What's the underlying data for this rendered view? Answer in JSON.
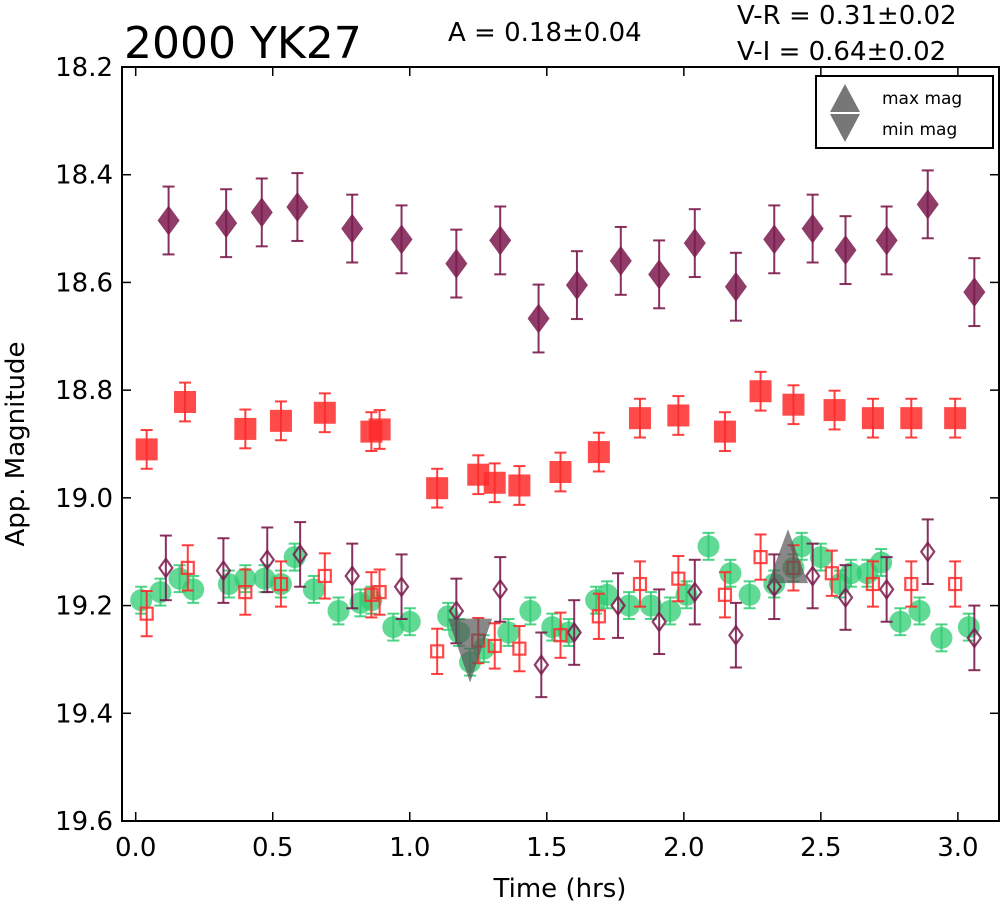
{
  "chart_data": {
    "type": "scatter",
    "title": "2000 YK27",
    "amplitude_label": "A  = 0.18±0.04",
    "color_vr": "V-R = 0.31±0.02",
    "color_vi": "V-I  = 0.64±0.02",
    "xlabel": "Time (hrs)",
    "ylabel": "App. Magnitude",
    "xlim": [
      -0.05,
      3.15
    ],
    "ylim": [
      19.6,
      18.2
    ],
    "y_inverted": true,
    "x_ticks": [
      0.0,
      0.5,
      1.0,
      1.5,
      2.0,
      2.5,
      3.0
    ],
    "x_tick_labels": [
      "0.0",
      "0.5",
      "1.0",
      "1.5",
      "2.0",
      "2.5",
      "3.0"
    ],
    "y_ticks": [
      18.2,
      18.4,
      18.6,
      18.8,
      19.0,
      19.2,
      19.4,
      19.6
    ],
    "y_tick_labels": [
      "18.2",
      "18.4",
      "18.6",
      "18.8",
      "19.0",
      "19.2",
      "19.4",
      "19.6"
    ],
    "legend": {
      "placement": "top-right",
      "entries": [
        {
          "label": "max mag",
          "marker": "triangle-up",
          "color": "#555555"
        },
        {
          "label": "min mag",
          "marker": "triangle-down",
          "color": "#555555"
        }
      ]
    },
    "series": [
      {
        "marker": "diamond-filled",
        "color": "#7b1a4d",
        "err": 0.063,
        "points": [
          [
            0.12,
            18.485
          ],
          [
            0.33,
            18.49
          ],
          [
            0.46,
            18.47
          ],
          [
            0.59,
            18.46
          ],
          [
            0.79,
            18.5
          ],
          [
            0.97,
            18.52
          ],
          [
            1.17,
            18.565
          ],
          [
            1.33,
            18.522
          ],
          [
            1.47,
            18.667
          ],
          [
            1.61,
            18.605
          ],
          [
            1.77,
            18.56
          ],
          [
            1.91,
            18.585
          ],
          [
            2.04,
            18.527
          ],
          [
            2.19,
            18.608
          ],
          [
            2.33,
            18.52
          ],
          [
            2.47,
            18.5
          ],
          [
            2.59,
            18.54
          ],
          [
            2.74,
            18.522
          ],
          [
            2.89,
            18.455
          ],
          [
            3.06,
            18.618
          ]
        ]
      },
      {
        "marker": "square-filled",
        "color": "#ff2a2a",
        "err": 0.036,
        "points": [
          [
            0.04,
            18.91
          ],
          [
            0.18,
            18.822
          ],
          [
            0.4,
            18.872
          ],
          [
            0.53,
            18.857
          ],
          [
            0.69,
            18.842
          ],
          [
            0.86,
            18.877
          ],
          [
            0.89,
            18.873
          ],
          [
            1.1,
            18.982
          ],
          [
            1.25,
            18.957
          ],
          [
            1.31,
            18.972
          ],
          [
            1.4,
            18.977
          ],
          [
            1.55,
            18.952
          ],
          [
            1.69,
            18.915
          ],
          [
            1.84,
            18.852
          ],
          [
            1.98,
            18.847
          ],
          [
            2.15,
            18.877
          ],
          [
            2.28,
            18.802
          ],
          [
            2.4,
            18.827
          ],
          [
            2.55,
            18.837
          ],
          [
            2.69,
            18.852
          ],
          [
            2.83,
            18.852
          ],
          [
            2.99,
            18.852
          ]
        ]
      },
      {
        "marker": "circle-filled",
        "color": "#2ecc71",
        "err": 0.025,
        "points": [
          [
            0.02,
            19.19
          ],
          [
            0.09,
            19.175
          ],
          [
            0.16,
            19.15
          ],
          [
            0.21,
            19.17
          ],
          [
            0.34,
            19.16
          ],
          [
            0.4,
            19.15
          ],
          [
            0.47,
            19.15
          ],
          [
            0.53,
            19.16
          ],
          [
            0.58,
            19.11
          ],
          [
            0.65,
            19.17
          ],
          [
            0.74,
            19.21
          ],
          [
            0.82,
            19.195
          ],
          [
            0.86,
            19.19
          ],
          [
            0.94,
            19.24
          ],
          [
            1.0,
            19.23
          ],
          [
            1.14,
            19.22
          ],
          [
            1.18,
            19.25
          ],
          [
            1.22,
            19.305
          ],
          [
            1.27,
            19.28
          ],
          [
            1.36,
            19.25
          ],
          [
            1.44,
            19.21
          ],
          [
            1.52,
            19.24
          ],
          [
            1.58,
            19.25
          ],
          [
            1.68,
            19.19
          ],
          [
            1.72,
            19.18
          ],
          [
            1.8,
            19.2
          ],
          [
            1.88,
            19.2
          ],
          [
            1.95,
            19.21
          ],
          [
            2.01,
            19.18
          ],
          [
            2.09,
            19.09
          ],
          [
            2.17,
            19.14
          ],
          [
            2.24,
            19.18
          ],
          [
            2.33,
            19.16
          ],
          [
            2.4,
            19.13
          ],
          [
            2.43,
            19.09
          ],
          [
            2.5,
            19.11
          ],
          [
            2.57,
            19.16
          ],
          [
            2.61,
            19.14
          ],
          [
            2.67,
            19.14
          ],
          [
            2.72,
            19.12
          ],
          [
            2.79,
            19.23
          ],
          [
            2.86,
            19.21
          ],
          [
            2.94,
            19.26
          ],
          [
            3.04,
            19.24
          ]
        ]
      },
      {
        "marker": "diamond-open",
        "color": "#7b1a4d",
        "err": 0.06,
        "points": [
          [
            0.11,
            19.13
          ],
          [
            0.32,
            19.135
          ],
          [
            0.48,
            19.115
          ],
          [
            0.6,
            19.105
          ],
          [
            0.79,
            19.145
          ],
          [
            0.97,
            19.165
          ],
          [
            1.17,
            19.21
          ],
          [
            1.33,
            19.17
          ],
          [
            1.48,
            19.31
          ],
          [
            1.6,
            19.25
          ],
          [
            1.76,
            19.2
          ],
          [
            1.91,
            19.23
          ],
          [
            2.04,
            19.175
          ],
          [
            2.19,
            19.255
          ],
          [
            2.33,
            19.165
          ],
          [
            2.47,
            19.145
          ],
          [
            2.59,
            19.185
          ],
          [
            2.74,
            19.17
          ],
          [
            2.89,
            19.1
          ],
          [
            3.06,
            19.26
          ]
        ]
      },
      {
        "marker": "square-open",
        "color": "#ff2a2a",
        "err": 0.042,
        "points": [
          [
            0.04,
            19.215
          ],
          [
            0.19,
            19.13
          ],
          [
            0.4,
            19.175
          ],
          [
            0.53,
            19.16
          ],
          [
            0.69,
            19.145
          ],
          [
            0.86,
            19.18
          ],
          [
            0.89,
            19.175
          ],
          [
            1.1,
            19.285
          ],
          [
            1.25,
            19.265
          ],
          [
            1.31,
            19.275
          ],
          [
            1.4,
            19.28
          ],
          [
            1.55,
            19.255
          ],
          [
            1.69,
            19.22
          ],
          [
            1.84,
            19.16
          ],
          [
            1.98,
            19.15
          ],
          [
            2.15,
            19.18
          ],
          [
            2.28,
            19.11
          ],
          [
            2.4,
            19.13
          ],
          [
            2.54,
            19.14
          ],
          [
            2.69,
            19.16
          ],
          [
            2.83,
            19.16
          ],
          [
            2.99,
            19.16
          ]
        ]
      }
    ],
    "extrema": [
      {
        "label": "min mag",
        "marker": "triangle-down",
        "x": 1.22,
        "y": 19.28,
        "color": "#555555"
      },
      {
        "label": "max mag",
        "marker": "triangle-up",
        "x": 2.38,
        "y": 19.11,
        "color": "#555555"
      }
    ]
  }
}
